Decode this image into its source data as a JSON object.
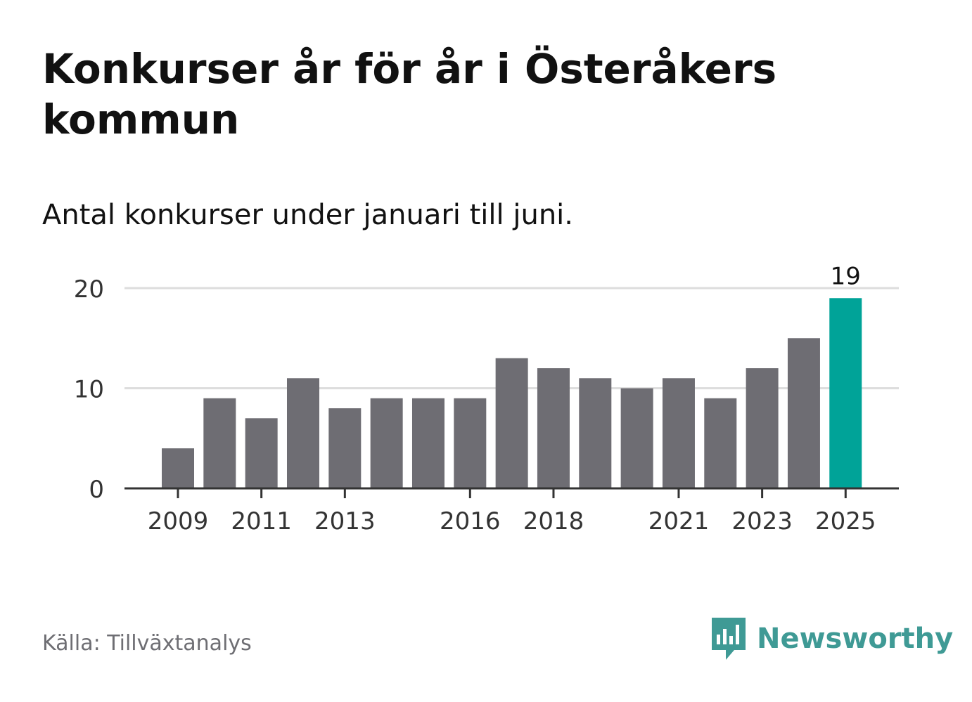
{
  "title": "Konkurser år för år i Österåkers kommun",
  "subtitle": "Antal konkurser under januari till juni.",
  "source": "Källa: Tillväxtanalys",
  "brand": {
    "name": "Newsworthy",
    "icon": "bar-chart-speech-bubble-icon"
  },
  "colors": {
    "bar": "#6e6d73",
    "highlight": "#00a398",
    "grid": "#dddddd",
    "axis": "#333333",
    "brand": "#3f9a95"
  },
  "chart_data": {
    "type": "bar",
    "categories": [
      "2009",
      "2010",
      "2011",
      "2012",
      "2013",
      "2014",
      "2015",
      "2016",
      "2017",
      "2018",
      "2019",
      "2020",
      "2021",
      "2022",
      "2023",
      "2024",
      "2025"
    ],
    "values": [
      4,
      9,
      7,
      11,
      8,
      9,
      9,
      9,
      13,
      12,
      11,
      10,
      11,
      9,
      12,
      15,
      19
    ],
    "x_tick_labels": [
      "2009",
      "2011",
      "2013",
      "2016",
      "2018",
      "2021",
      "2023",
      "2025"
    ],
    "y_ticks": [
      0,
      10,
      20
    ],
    "ylim": [
      0,
      20
    ],
    "highlight_category": "2025",
    "data_labels": {
      "2025": "19"
    },
    "grid": true
  }
}
